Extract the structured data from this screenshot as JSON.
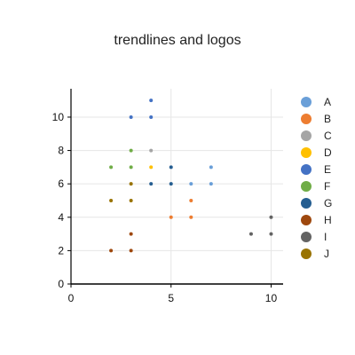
{
  "chart_data": {
    "type": "scatter",
    "title": "trendlines and logos",
    "xlabel": "",
    "ylabel": "",
    "xlim": [
      0,
      10.6
    ],
    "ylim": [
      0,
      11.7
    ],
    "xticks": [
      0,
      5,
      10
    ],
    "yticks": [
      0,
      2,
      4,
      6,
      8,
      10
    ],
    "grid": true,
    "legend_position": "right",
    "series": [
      {
        "name": "A",
        "color": "#6a9fd8",
        "points": [
          [
            6,
            6
          ],
          [
            7,
            6
          ],
          [
            7,
            7
          ]
        ]
      },
      {
        "name": "B",
        "color": "#ed7d31",
        "points": [
          [
            5,
            4
          ],
          [
            6,
            4
          ],
          [
            6,
            5
          ]
        ]
      },
      {
        "name": "C",
        "color": "#a5a5a5",
        "points": [
          [
            4,
            8
          ]
        ]
      },
      {
        "name": "D",
        "color": "#ffc000",
        "points": [
          [
            4,
            7
          ]
        ]
      },
      {
        "name": "E",
        "color": "#4472c4",
        "points": [
          [
            3,
            10
          ],
          [
            4,
            10
          ],
          [
            4,
            11
          ]
        ]
      },
      {
        "name": "F",
        "color": "#70ad47",
        "points": [
          [
            2,
            7
          ],
          [
            3,
            7
          ],
          [
            3,
            8
          ]
        ]
      },
      {
        "name": "G",
        "color": "#255e91",
        "points": [
          [
            4,
            6
          ],
          [
            5,
            6
          ],
          [
            5,
            7
          ]
        ]
      },
      {
        "name": "H",
        "color": "#9e480e",
        "points": [
          [
            2,
            2
          ],
          [
            3,
            2
          ],
          [
            3,
            3
          ]
        ]
      },
      {
        "name": "I",
        "color": "#636363",
        "points": [
          [
            9,
            3
          ],
          [
            10,
            3
          ],
          [
            10,
            4
          ]
        ]
      },
      {
        "name": "J",
        "color": "#997300",
        "points": [
          [
            2,
            5
          ],
          [
            3,
            5
          ],
          [
            3,
            6
          ]
        ]
      }
    ]
  }
}
